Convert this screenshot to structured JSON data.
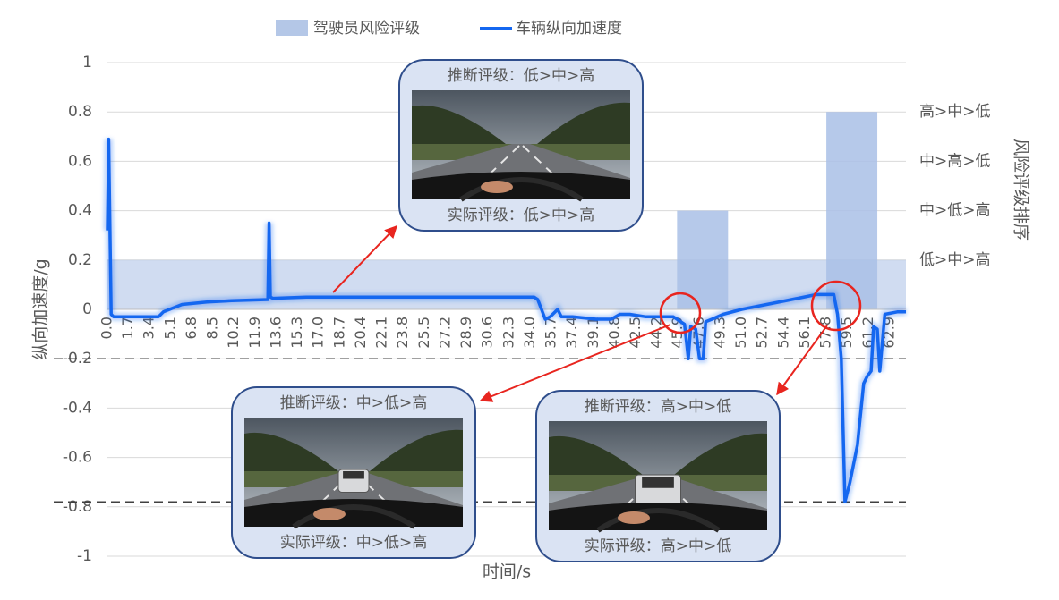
{
  "chart_data": {
    "type": "line",
    "legend": "top",
    "grid": true,
    "xlabel": "时间/s",
    "ylabel": "纵向加速度/g",
    "y2label": "风险评级排序",
    "xlim": [
      0,
      64.2
    ],
    "xticks": [
      {
        "value": 0,
        "label": "0.0"
      },
      1.7,
      3.4,
      5.1,
      6.8,
      8.5,
      10.2,
      11.9,
      13.6,
      15.3,
      {
        "value": 17,
        "label": "17.0"
      },
      18.7,
      20.4,
      22.1,
      23.8,
      25.5,
      27.2,
      28.9,
      30.6,
      32.3,
      {
        "value": 34,
        "label": "34.0"
      },
      35.7,
      37.4,
      39.1,
      40.8,
      42.5,
      44.2,
      45.9,
      47.6,
      49.3,
      {
        "value": 51,
        "label": "51.0"
      },
      52.7,
      54.4,
      56.1,
      57.8,
      59.5,
      61.2,
      62.9
    ],
    "ylim": [
      -1,
      1
    ],
    "yticks": [
      -1,
      -0.8,
      -0.6,
      -0.4,
      -0.2,
      0,
      0.2,
      0.4,
      0.6,
      0.8,
      1
    ],
    "y2lim": [
      -1,
      1
    ],
    "y2ticks": [
      {
        "value": 0.2,
        "label": "低>中>高"
      },
      {
        "value": 0.4,
        "label": "中>低>高"
      },
      {
        "value": 0.6,
        "label": "中>高>低"
      },
      {
        "value": 0.8,
        "label": "高>中>低"
      }
    ],
    "reference_lines": [
      -0.2,
      -0.78
    ],
    "series": [
      {
        "name": "驾驶员风险评级",
        "type": "bar",
        "axis": "y2",
        "color": "#a9bfe6",
        "x_start": [
          0,
          45.8,
          57.8
        ],
        "x_end": [
          64.2,
          49.9,
          61.9
        ],
        "values": [
          0.2,
          0.4,
          0.8
        ]
      },
      {
        "name": "车辆纵向加速度",
        "type": "line",
        "color": "#1467f0",
        "x": [
          0,
          0.05,
          0.1,
          0.3,
          0.5,
          4.1,
          4.5,
          6,
          8,
          10,
          12.9,
          13,
          13.1,
          13.3,
          16,
          20,
          25,
          30,
          34.3,
          34.6,
          35.2,
          35.6,
          36.2,
          36.5,
          37.4,
          39.3,
          40.5,
          41.2,
          42,
          43.3,
          45.5,
          46.4,
          46.7,
          46.9,
          47.3,
          47.6,
          47.9,
          48.1,
          48.6,
          49.5,
          51,
          53,
          55,
          57,
          58.4,
          58.7,
          59.0,
          59.3,
          59.7,
          60.3,
          60.8,
          61.1,
          61.4,
          61.6,
          61.9,
          62.1,
          62.5,
          63.5,
          64.2
        ],
        "values": [
          0.32,
          0.5,
          0.69,
          -0.02,
          -0.03,
          -0.03,
          -0.01,
          0.02,
          0.03,
          0.035,
          0.04,
          0.35,
          0.05,
          0.045,
          0.05,
          0.05,
          0.05,
          0.05,
          0.05,
          0.04,
          -0.04,
          -0.03,
          0.0,
          -0.03,
          -0.03,
          -0.04,
          -0.04,
          -0.02,
          -0.02,
          -0.03,
          -0.03,
          -0.06,
          -0.2,
          -0.07,
          -0.08,
          -0.2,
          -0.2,
          -0.05,
          -0.04,
          -0.02,
          0.0,
          0.02,
          0.04,
          0.06,
          0.06,
          -0.02,
          -0.2,
          -0.78,
          -0.7,
          -0.55,
          -0.3,
          -0.27,
          -0.25,
          -0.07,
          -0.08,
          -0.25,
          -0.02,
          -0.01,
          -0.01
        ]
      }
    ],
    "annotations": [
      {
        "inferred": "推断评级：低>中>高",
        "actual": "实际评级：低>中>高"
      },
      {
        "inferred": "推断评级：中>低>高",
        "actual": "实际评级：中>低>高"
      },
      {
        "inferred": "推断评级：高>中>低",
        "actual": "实际评级：高>中>低"
      }
    ]
  }
}
